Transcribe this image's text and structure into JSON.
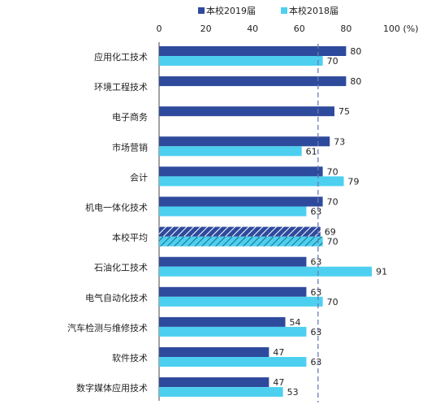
{
  "chart_data": {
    "type": "bar",
    "orientation": "horizontal",
    "categories": [
      "应用化工技术",
      "环境工程技术",
      "电子商务",
      "市场营销",
      "会计",
      "机电一体化技术",
      "本校平均",
      "石油化工技术",
      "电气自动化技术",
      "汽车检测与维修技术",
      "软件技术",
      "数字媒体应用技术"
    ],
    "series": [
      {
        "name": "本校2019届",
        "color": "#2e4a9c",
        "values": [
          80,
          80,
          75,
          73,
          70,
          70,
          69,
          63,
          63,
          54,
          47,
          47
        ]
      },
      {
        "name": "本校2018届",
        "color": "#4dd0f0",
        "values": [
          70,
          null,
          null,
          61,
          79,
          63,
          70,
          91,
          70,
          63,
          63,
          53
        ]
      }
    ],
    "highlight_category": "本校平均",
    "xlim": [
      0,
      100
    ],
    "xticks": [
      "0",
      "20",
      "40",
      "60",
      "80",
      "100 (%)"
    ],
    "reference_line": 68,
    "legend_position": "top"
  }
}
